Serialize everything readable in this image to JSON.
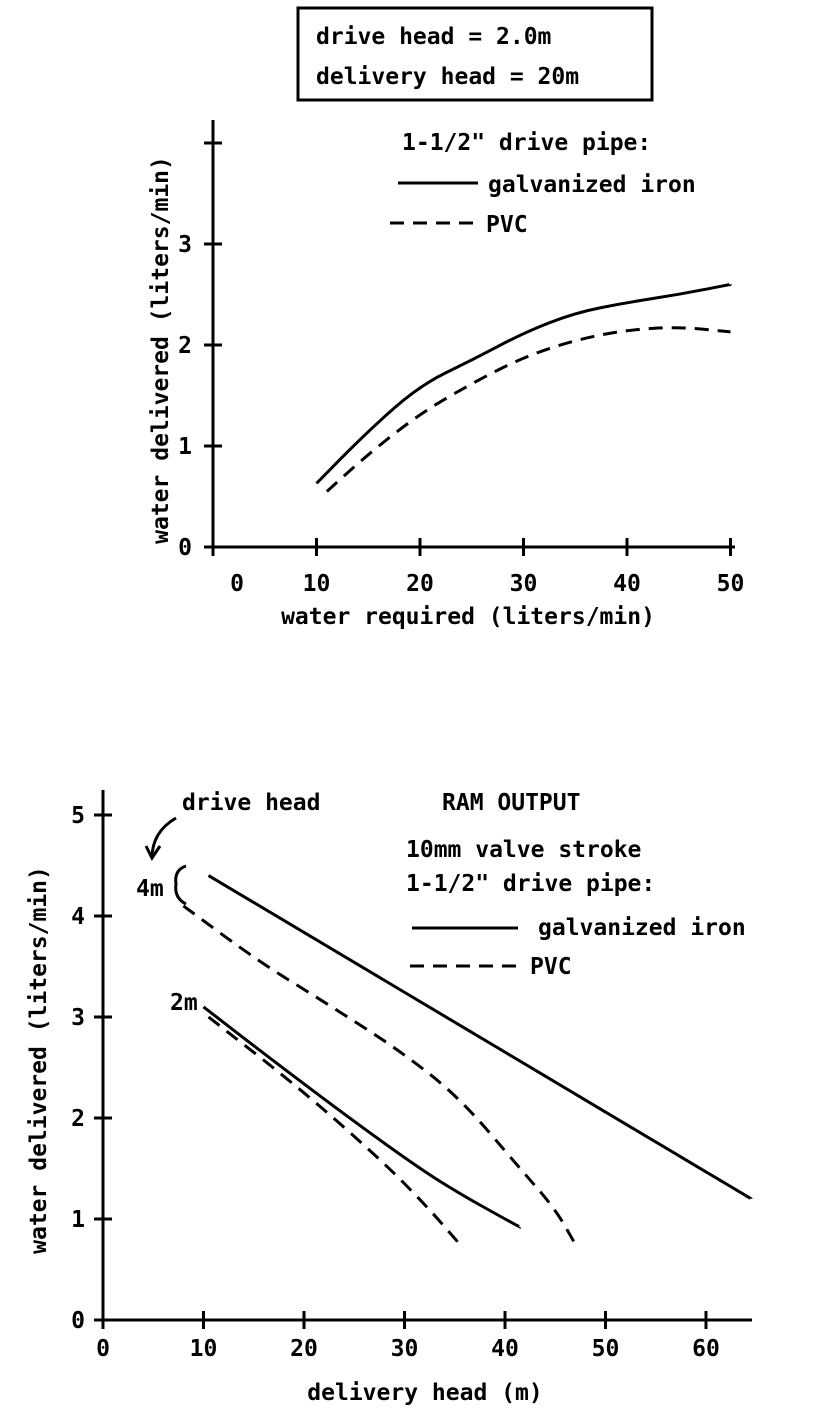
{
  "chart_data": [
    {
      "type": "line",
      "title_box": [
        "drive head = 2.0m",
        "delivery head = 20m"
      ],
      "xlabel": "water required (liters/min)",
      "ylabel": "water delivered (liters/min)",
      "xlim": [
        0,
        50
      ],
      "ylim": [
        0,
        4
      ],
      "xticks": [
        "0",
        "10",
        "20",
        "30",
        "40",
        "50"
      ],
      "yticks": [
        "0",
        "1",
        "2",
        "3",
        "4"
      ],
      "ytick_labels_shown": [
        "0",
        "1",
        "2",
        "3"
      ],
      "grid": false,
      "legend_title": "1-1/2\" drive pipe:",
      "legend_placement": "top-right",
      "series": [
        {
          "name": "galvanized iron",
          "style": "solid",
          "x": [
            10,
            15,
            20,
            25,
            30,
            35,
            40,
            45,
            50
          ],
          "y": [
            0.63,
            1.15,
            1.6,
            1.85,
            2.12,
            2.32,
            2.42,
            2.5,
            2.6
          ]
        },
        {
          "name": "PVC",
          "style": "dashed",
          "x": [
            11,
            15,
            20,
            25,
            30,
            35,
            40,
            45,
            50
          ],
          "y": [
            0.55,
            0.92,
            1.32,
            1.62,
            1.88,
            2.05,
            2.15,
            2.18,
            2.13
          ]
        }
      ]
    },
    {
      "type": "line",
      "title": "RAM OUTPUT",
      "xlabel": "delivery head (m)",
      "ylabel": "water delivered (liters/min)",
      "xlim": [
        0,
        65
      ],
      "ylim": [
        0,
        5
      ],
      "xticks": [
        "0",
        "10",
        "20",
        "30",
        "40",
        "50",
        "60"
      ],
      "yticks": [
        "0",
        "1",
        "2",
        "3",
        "4",
        "5"
      ],
      "grid": false,
      "legend_title": [
        "10mm valve stroke",
        "1-1/2\" drive pipe:"
      ],
      "legend_placement": "top-right",
      "legend": [
        "galvanized iron",
        "PVC"
      ],
      "annotations": {
        "drive_head": "drive head",
        "h4": "4m",
        "h2": "2m"
      },
      "series": [
        {
          "name": "galvanized iron, 4m drive head",
          "style": "solid",
          "x": [
            10.5,
            64.5
          ],
          "y": [
            4.4,
            1.2
          ]
        },
        {
          "name": "PVC, 4m drive head",
          "style": "dashed",
          "x": [
            8,
            15.5,
            22,
            29.5,
            35.5,
            41.5,
            45,
            47
          ],
          "y": [
            4.1,
            3.55,
            3.15,
            2.67,
            2.2,
            1.5,
            1.1,
            0.75
          ]
        },
        {
          "name": "galvanized iron, 2m drive head",
          "style": "solid",
          "x": [
            10,
            16.5,
            24.5,
            31.5,
            35.5,
            40,
            41.5
          ],
          "y": [
            3.1,
            2.6,
            2.0,
            1.5,
            1.25,
            1.0,
            0.92
          ]
        },
        {
          "name": "PVC, 2m drive head",
          "style": "dashed",
          "x": [
            10.5,
            19.5,
            27.5,
            32,
            35.5
          ],
          "y": [
            3.0,
            2.3,
            1.6,
            1.15,
            0.75
          ]
        }
      ]
    }
  ]
}
